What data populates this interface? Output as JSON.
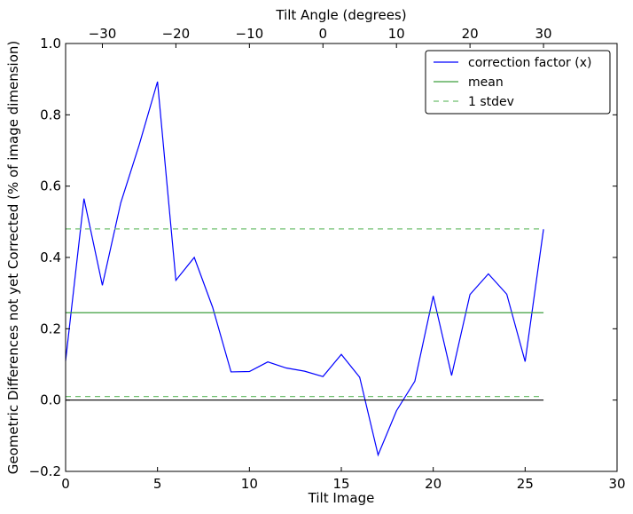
{
  "chart_data": {
    "type": "line",
    "xlabel": "Tilt Image",
    "ylabel": "Geometric Differences not yet Corrected (% of image dimension)",
    "top_xlabel": "Tilt Angle (degrees)",
    "xlim": [
      0,
      30
    ],
    "ylim": [
      -0.2,
      1.0
    ],
    "xticks": [
      0,
      5,
      10,
      15,
      20,
      25,
      30
    ],
    "yticks": [
      -0.2,
      0.0,
      0.2,
      0.4,
      0.6,
      0.8,
      1.0
    ],
    "xtick_labels": [
      "0",
      "5",
      "10",
      "15",
      "20",
      "25",
      "30"
    ],
    "ytick_labels": [
      "−0.2",
      "0.0",
      "0.2",
      "0.4",
      "0.6",
      "0.8",
      "1.0"
    ],
    "top_axis": {
      "ticks_x": [
        2,
        6,
        10,
        14,
        18,
        22,
        26
      ],
      "labels": [
        "−30",
        "−20",
        "−10",
        "0",
        "10",
        "20",
        "30"
      ]
    },
    "legend": {
      "placement": "top-right",
      "entries": [
        {
          "label": "correction factor (x)",
          "style": "solid",
          "color": "#0000ff"
        },
        {
          "label": "mean",
          "style": "solid",
          "color": "#3f9f3f"
        },
        {
          "label": "1 stdev",
          "style": "dashed",
          "color": "#6fbf6f"
        }
      ]
    },
    "series": [
      {
        "name": "correction factor (x)",
        "color": "#0000ff",
        "x": [
          0,
          1,
          2,
          3,
          4,
          5,
          6,
          7,
          8,
          9,
          10,
          11,
          12,
          13,
          14,
          15,
          16,
          17,
          18,
          19,
          20,
          21,
          22,
          23,
          24,
          25,
          26
        ],
        "values": [
          0.11,
          0.565,
          0.322,
          0.553,
          0.715,
          0.893,
          0.336,
          0.4,
          0.26,
          0.079,
          0.08,
          0.107,
          0.09,
          0.081,
          0.066,
          0.128,
          0.064,
          -0.154,
          -0.03,
          0.053,
          0.292,
          0.069,
          0.296,
          0.354,
          0.297,
          0.108,
          0.479
        ]
      },
      {
        "name": "mean",
        "color": "#3f9f3f",
        "style": "solid",
        "x": [
          0,
          26
        ],
        "values": [
          0.245,
          0.245
        ]
      },
      {
        "name": "1 stdev",
        "color": "#6fbf6f",
        "style": "dashed",
        "x": [
          0,
          26
        ],
        "values": [
          0.48,
          0.48
        ]
      },
      {
        "name": "1 stdev",
        "color": "#6fbf6f",
        "style": "dashed",
        "x": [
          0,
          26
        ],
        "values": [
          0.01,
          0.01
        ]
      },
      {
        "name": "",
        "color": "#000000",
        "style": "solid",
        "x": [
          0,
          26
        ],
        "values": [
          0.0,
          0.0
        ]
      }
    ]
  }
}
